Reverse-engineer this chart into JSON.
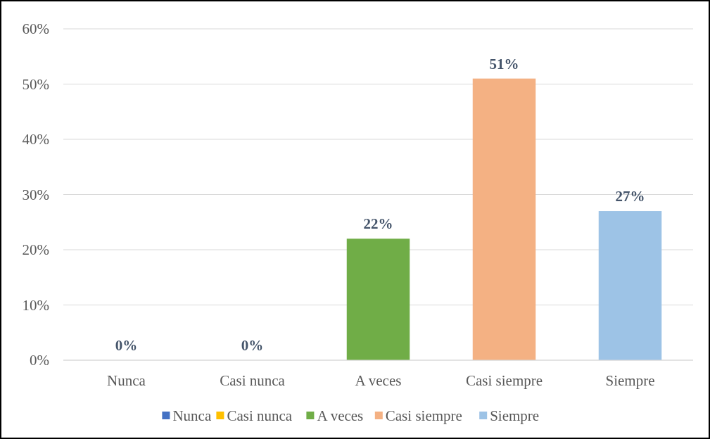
{
  "chart_data": {
    "type": "bar",
    "categories": [
      "Nunca",
      "Casi nunca",
      "A veces",
      "Casi siempre",
      "Siempre"
    ],
    "series": [
      {
        "name": "Nunca",
        "color": "#4472c4",
        "values": [
          0,
          null,
          null,
          null,
          null
        ],
        "value_labels": [
          "0%",
          null,
          null,
          null,
          null
        ]
      },
      {
        "name": "Casi nunca",
        "color": "#ffc000",
        "values": [
          null,
          0,
          null,
          null,
          null
        ],
        "value_labels": [
          null,
          "0%",
          null,
          null,
          null
        ]
      },
      {
        "name": "A veces",
        "color": "#70ad47",
        "values": [
          null,
          null,
          22,
          null,
          null
        ],
        "value_labels": [
          null,
          null,
          "22%",
          null,
          null
        ]
      },
      {
        "name": "Casi siempre",
        "color": "#f4b183",
        "values": [
          null,
          null,
          null,
          51,
          null
        ],
        "value_labels": [
          null,
          null,
          null,
          "51%",
          null
        ]
      },
      {
        "name": "Siempre",
        "color": "#9dc3e6",
        "values": [
          null,
          null,
          null,
          null,
          27
        ],
        "value_labels": [
          null,
          null,
          null,
          null,
          "27%"
        ]
      }
    ],
    "ylim": [
      0,
      60
    ],
    "yticks": [
      {
        "value": 0,
        "label": "0%"
      },
      {
        "value": 10,
        "label": "10%"
      },
      {
        "value": 20,
        "label": "20%"
      },
      {
        "value": 30,
        "label": "30%"
      },
      {
        "value": 40,
        "label": "40%"
      },
      {
        "value": 50,
        "label": "50%"
      },
      {
        "value": 60,
        "label": "60%"
      }
    ],
    "grid": "y",
    "legend": "bottom"
  }
}
